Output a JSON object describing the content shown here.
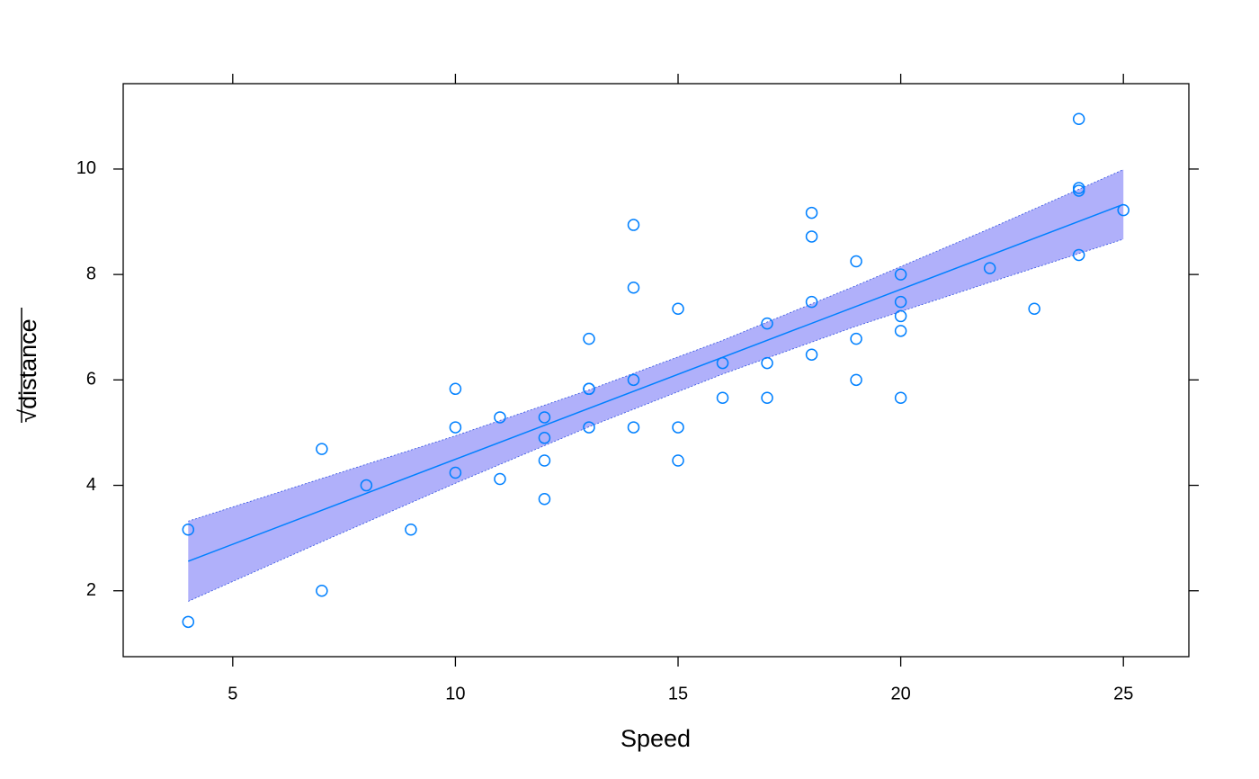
{
  "chart_data": {
    "type": "scatter",
    "x_label": "Speed",
    "y_label": "√distance",
    "xlim": [
      2.54,
      26.47
    ],
    "ylim": [
      0.75,
      11.62
    ],
    "xticks": [
      5,
      10,
      15,
      20,
      25
    ],
    "yticks": [
      2,
      4,
      6,
      8,
      10
    ],
    "color": "#0080ff",
    "band_color": "#b0b0fa",
    "points": {
      "x": [
        4,
        4,
        7,
        7,
        8,
        9,
        10,
        10,
        10,
        11,
        11,
        12,
        12,
        12,
        12,
        13,
        13,
        13,
        13,
        14,
        14,
        14,
        14,
        15,
        15,
        15,
        16,
        16,
        17,
        17,
        17,
        18,
        18,
        18,
        18,
        19,
        19,
        19,
        20,
        20,
        20,
        20,
        20,
        22,
        23,
        24,
        24,
        24,
        24,
        25
      ],
      "y": [
        1.41,
        3.16,
        2,
        4.69,
        4,
        3.16,
        4.24,
        5.1,
        5.83,
        4.12,
        5.29,
        3.74,
        4.47,
        4.9,
        5.29,
        5.1,
        5.83,
        5.83,
        6.78,
        5.1,
        6,
        7.75,
        8.94,
        4.47,
        5.1,
        7.35,
        5.66,
        6.32,
        5.66,
        6.32,
        7.07,
        6.48,
        7.48,
        8.72,
        9.17,
        6,
        6.78,
        8.25,
        5.66,
        6.93,
        7.21,
        7.48,
        8,
        8.12,
        7.35,
        8.37,
        9.59,
        9.64,
        10.95,
        9.22
      ]
    },
    "fit": {
      "x": [
        4,
        25
      ],
      "y": [
        2.56,
        9.33
      ]
    },
    "band": {
      "x": [
        4,
        7,
        10,
        13,
        16,
        19,
        22,
        25
      ],
      "lower": [
        1.8,
        2.93,
        4.04,
        5.11,
        6.11,
        7.02,
        7.85,
        8.67
      ],
      "upper": [
        3.32,
        4.13,
        4.94,
        5.81,
        6.75,
        7.79,
        8.87,
        9.99
      ]
    }
  }
}
